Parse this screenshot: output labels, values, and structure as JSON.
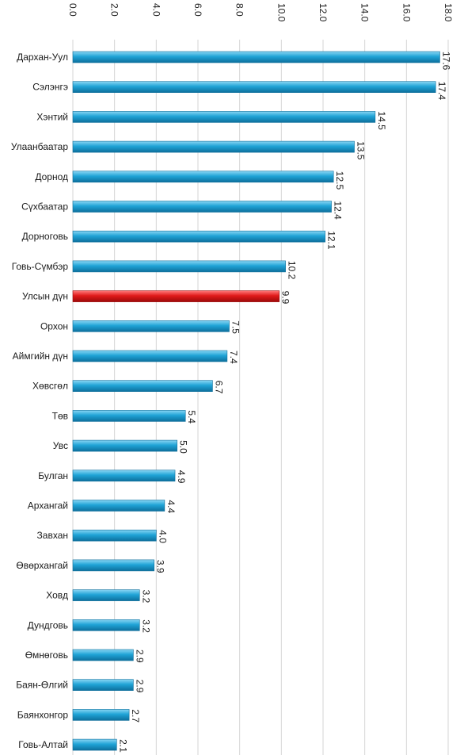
{
  "chart_data": {
    "type": "bar",
    "orientation": "horizontal",
    "title": "",
    "xlabel": "",
    "ylabel": "",
    "xlim": [
      0,
      18
    ],
    "ticks": [
      "0.0",
      "2.0",
      "4.0",
      "6.0",
      "8.0",
      "10.0",
      "12.0",
      "14.0",
      "16.0",
      "18.0"
    ],
    "tick_values": [
      0,
      2,
      4,
      6,
      8,
      10,
      12,
      14,
      16,
      18
    ],
    "tick_label_rotation": "vertical",
    "grid": true,
    "legend": "none",
    "categories": [
      "Дархан-Уул",
      "Сэлэнгэ",
      "Хэнтий",
      "Улаанбаатар",
      "Дорнод",
      "Сүхбаатар",
      "Дорноговь",
      "Говь-Сүмбэр",
      "Улсын дүн",
      "Орхон",
      "Аймгийн дүн",
      "Хөвсгөл",
      "Төв",
      "Увс",
      "Булган",
      "Архангай",
      "Завхан",
      "Өвөрхангай",
      "Ховд",
      "Дундговь",
      "Өмнөговь",
      "Баян-Өлгий",
      "Баянхонгор",
      "Говь-Алтай"
    ],
    "values": [
      17.6,
      17.4,
      14.5,
      13.5,
      12.5,
      12.4,
      12.1,
      10.2,
      9.9,
      7.5,
      7.4,
      6.7,
      5.4,
      5.0,
      4.9,
      4.4,
      4.0,
      3.9,
      3.2,
      3.2,
      2.9,
      2.9,
      2.7,
      2.1
    ],
    "value_labels": [
      "17.6",
      "17.4",
      "14.5",
      "13.5",
      "12.5",
      "12.4",
      "12.1",
      "10.2",
      "9.9",
      "7.5",
      "7.4",
      "6.7",
      "5.4",
      "5.0",
      "4.9",
      "4.4",
      "4.0",
      "3.9",
      "3.2",
      "3.2",
      "2.9",
      "2.9",
      "2.7",
      "2.1"
    ],
    "highlight_category": "Улсын дүн",
    "colors": {
      "bar": "#1fa3d6",
      "bar_light": "#8ad6f4",
      "bar_dark": "#0d6f9c",
      "highlight": "#e01a1a",
      "highlight_light": "#ff7a7a",
      "highlight_dark": "#9c0a0a"
    }
  }
}
